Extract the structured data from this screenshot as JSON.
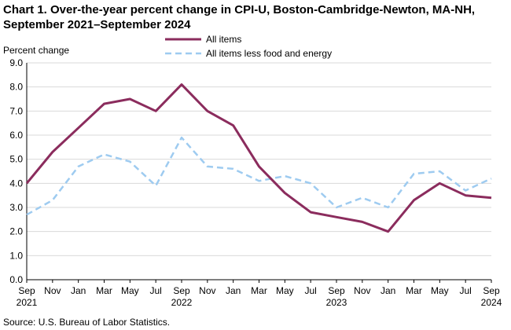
{
  "chart_data": {
    "type": "line",
    "title": "Chart 1. Over-the-year percent change in CPI-U, Boston-Cambridge-Newton, MA-NH, September 2021–September 2024",
    "ylabel": "Percent change",
    "xlabel": "",
    "ylim": [
      0,
      9
    ],
    "yticks": [
      "0.0",
      "1.0",
      "2.0",
      "3.0",
      "4.0",
      "5.0",
      "6.0",
      "7.0",
      "8.0",
      "9.0"
    ],
    "ytick_values": [
      0,
      1,
      2,
      3,
      4,
      5,
      6,
      7,
      8,
      9
    ],
    "xticks": [
      {
        "month": "Sep",
        "year": "2021"
      },
      {
        "month": "Nov",
        "year": ""
      },
      {
        "month": "Jan",
        "year": ""
      },
      {
        "month": "Mar",
        "year": ""
      },
      {
        "month": "May",
        "year": ""
      },
      {
        "month": "Jul",
        "year": ""
      },
      {
        "month": "Sep",
        "year": "2022"
      },
      {
        "month": "Nov",
        "year": ""
      },
      {
        "month": "Jan",
        "year": ""
      },
      {
        "month": "Mar",
        "year": ""
      },
      {
        "month": "May",
        "year": ""
      },
      {
        "month": "Jul",
        "year": ""
      },
      {
        "month": "Sep",
        "year": "2023"
      },
      {
        "month": "Nov",
        "year": ""
      },
      {
        "month": "Jan",
        "year": ""
      },
      {
        "month": "Mar",
        "year": ""
      },
      {
        "month": "May",
        "year": ""
      },
      {
        "month": "Jul",
        "year": ""
      },
      {
        "month": "Sep",
        "year": "2024"
      }
    ],
    "series": [
      {
        "name": "All items",
        "color": "#8b2c5d",
        "style": "solid",
        "values": [
          4.0,
          5.3,
          6.3,
          7.3,
          7.5,
          7.0,
          8.1,
          7.0,
          6.4,
          4.7,
          3.6,
          2.8,
          2.6,
          2.4,
          2.0,
          3.3,
          4.0,
          3.5,
          3.4
        ]
      },
      {
        "name": "All items less food and energy",
        "color": "#9ecbf0",
        "style": "dashed",
        "values": [
          2.7,
          3.3,
          4.7,
          5.2,
          4.9,
          3.9,
          5.9,
          4.7,
          4.6,
          4.1,
          4.3,
          4.0,
          3.0,
          3.4,
          3.0,
          4.4,
          4.5,
          3.7,
          4.2
        ]
      }
    ],
    "grid": true,
    "legend": "top-center"
  },
  "footer": {
    "source": "Source: U.S. Bureau of Labor Statistics."
  }
}
